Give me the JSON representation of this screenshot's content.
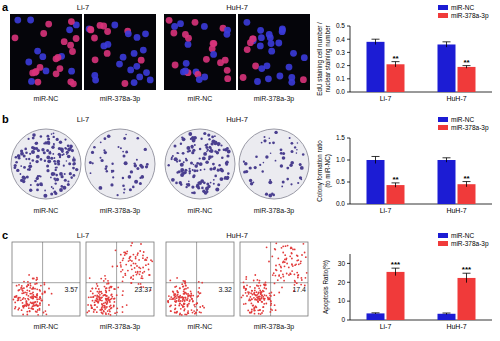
{
  "chart_data": [
    {
      "type": "bar",
      "categories": [
        "Li-7",
        "HuH-7"
      ],
      "y_label": [
        "EdU staining cell number /",
        "nuclear staining number"
      ],
      "ylim": [
        0,
        0.5
      ],
      "yticks": [
        {
          "value": 0,
          "label": "0.0"
        },
        0.1,
        0.2,
        0.3,
        0.4,
        0.5
      ],
      "legend": "top-right",
      "series": [
        {
          "name": "miR-NC",
          "color": "#1c1cd4",
          "values": [
            0.38,
            0.36
          ],
          "errors": [
            0.02,
            0.02
          ]
        },
        {
          "name": "miR-378a-3p",
          "color": "#f03a3a",
          "values": [
            0.21,
            0.19
          ],
          "errors": [
            0.02,
            0.01
          ],
          "significance": [
            "**",
            "**"
          ]
        }
      ]
    },
    {
      "type": "bar",
      "categories": [
        "Li-7",
        "HuH-7"
      ],
      "y_label": [
        "Colony formation ratio",
        "(to miR-NC)"
      ],
      "ylim": [
        0,
        1.5
      ],
      "yticks": [
        {
          "value": 0,
          "label": "0.0"
        },
        0.5,
        {
          "value": 1,
          "label": "1.0"
        },
        1.5
      ],
      "legend": "top-right",
      "series": [
        {
          "name": "miR-NC",
          "color": "#1c1cd4",
          "values": [
            1.0,
            1.0
          ],
          "errors": [
            0.08,
            0.05
          ]
        },
        {
          "name": "miR-378a-3p",
          "color": "#f03a3a",
          "values": [
            0.43,
            0.45
          ],
          "errors": [
            0.05,
            0.06
          ],
          "significance": [
            "**",
            "**"
          ]
        }
      ]
    },
    {
      "type": "bar",
      "categories": [
        "Li-7",
        "HuH-7"
      ],
      "y_label": [
        "Apoptosis Ratio(%)"
      ],
      "ylim": [
        0,
        35
      ],
      "yticks": [
        0,
        10,
        20,
        30
      ],
      "legend": "top-right",
      "series": [
        {
          "name": "miR-NC",
          "color": "#1c1cd4",
          "values": [
            3.5,
            3.3
          ],
          "errors": [
            0.3,
            0.4
          ]
        },
        {
          "name": "miR-378a-3p",
          "color": "#f03a3a",
          "values": [
            25.5,
            22.3
          ],
          "errors": [
            2.0,
            2.5
          ],
          "significance": [
            "***",
            "***"
          ]
        }
      ]
    }
  ],
  "panels": [
    {
      "label": "a",
      "groups": [
        {
          "cell_line": "Li-7",
          "images": [
            {
              "group": "miR-NC"
            },
            {
              "group": "miR-378a-3p"
            }
          ]
        },
        {
          "cell_line": "HuH-7",
          "images": [
            {
              "group": "miR-NC"
            },
            {
              "group": "miR-378a-3p"
            }
          ]
        }
      ]
    },
    {
      "label": "b",
      "groups": [
        {
          "cell_line": "Li-7",
          "images": [
            {
              "group": "miR-NC"
            },
            {
              "group": "miR-378a-3p"
            }
          ]
        },
        {
          "cell_line": "HuH-7",
          "images": [
            {
              "group": "miR-NC"
            },
            {
              "group": "miR-378a-3p"
            }
          ]
        }
      ]
    },
    {
      "label": "c",
      "groups": [
        {
          "cell_line": "Li-7",
          "images": [
            {
              "group": "miR-NC",
              "value": 3.57
            },
            {
              "group": "miR-378a-3p",
              "value": 23.37
            }
          ]
        },
        {
          "cell_line": "HuH-7",
          "images": [
            {
              "group": "miR-NC",
              "value": 3.32
            },
            {
              "group": "miR-378a-3p",
              "value": 17.4
            }
          ]
        }
      ]
    }
  ]
}
